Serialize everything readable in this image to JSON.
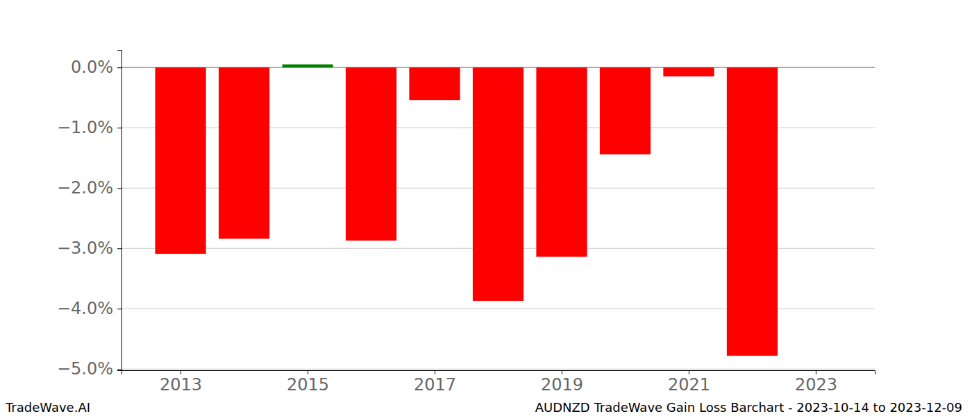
{
  "chart_data": {
    "type": "bar",
    "title": "AUDNZD TradeWave Gain Loss Barchart - 2023-10-14 to 2023-12-09",
    "annotations": [
      "TradeWave.AI"
    ],
    "x": [
      2013,
      2014,
      2015,
      2016,
      2017,
      2018,
      2019,
      2020,
      2021,
      2022
    ],
    "values": [
      -3.09,
      -2.84,
      0.05,
      -2.87,
      -0.54,
      -3.87,
      -3.14,
      -1.44,
      -0.15,
      -4.78
    ],
    "colors": [
      "#ff0000",
      "#ff0000",
      "#008000",
      "#ff0000",
      "#ff0000",
      "#ff0000",
      "#ff0000",
      "#ff0000",
      "#ff0000",
      "#ff0000"
    ],
    "xlim": [
      2012.07,
      2023.93
    ],
    "xticks": [
      2013,
      2015,
      2017,
      2019,
      2021,
      2023
    ],
    "ylim": [
      -5.02,
      0.29
    ],
    "yticks": [
      {
        "value": 0,
        "label": "0.0%"
      },
      {
        "value": -1,
        "label": "−1.0%"
      },
      {
        "value": -2,
        "label": "−2.0%"
      },
      {
        "value": -3,
        "label": "−3.0%"
      },
      {
        "value": -4,
        "label": "−4.0%"
      },
      {
        "value": -5,
        "label": "−5.0%"
      }
    ],
    "grid": true
  }
}
